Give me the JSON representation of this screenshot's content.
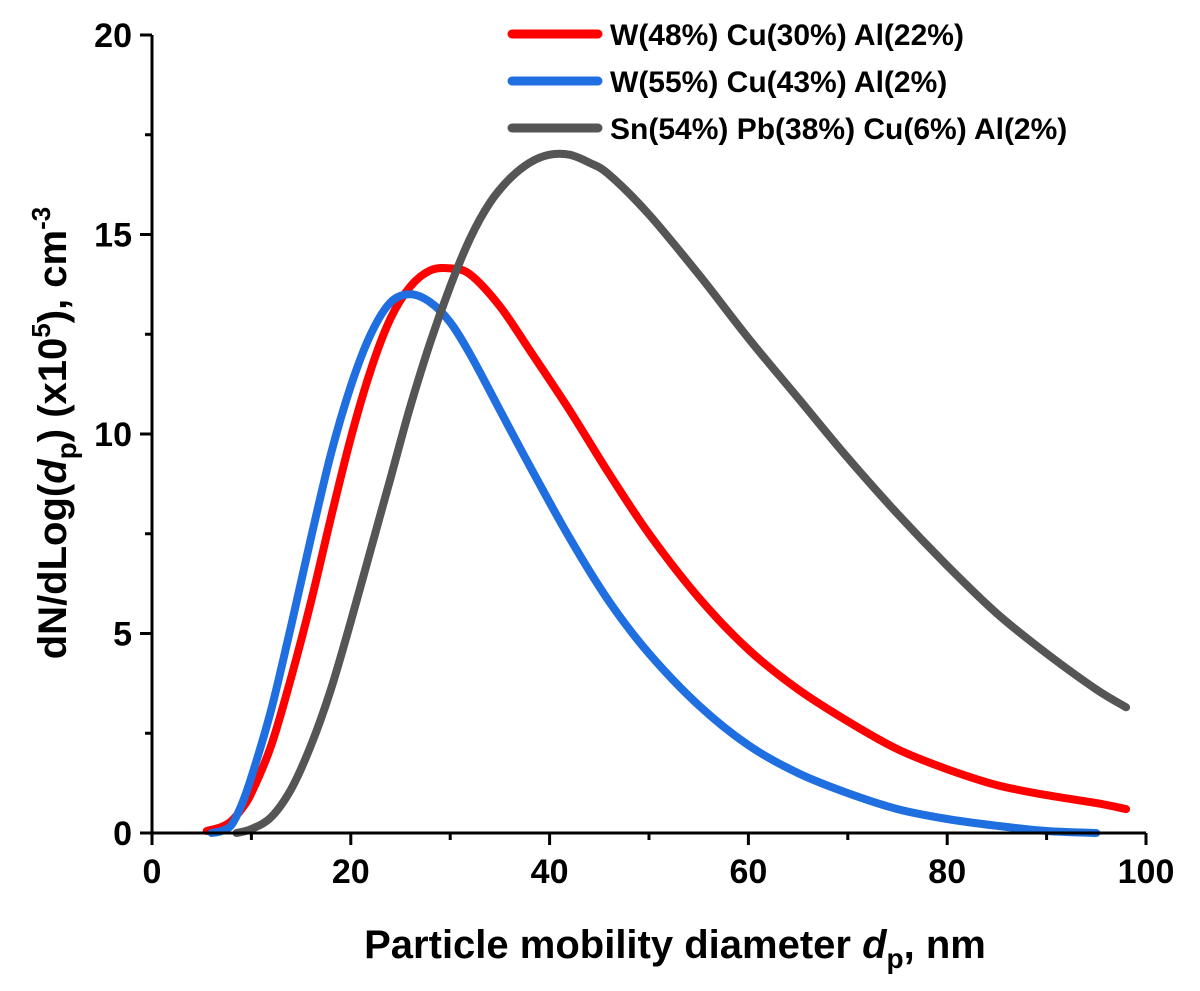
{
  "chart_data": {
    "type": "line",
    "xlabel": {
      "main": "Particle mobility diameter",
      "var": "d",
      "sub": "p",
      "unit": ", nm"
    },
    "ylabel": {
      "p1": "dN/dLog(",
      "var": "d",
      "sub": "p",
      "p2": ") (x10",
      "sup": "5",
      "p3": "), cm",
      "sup2": "-3"
    },
    "xlim": [
      0,
      100
    ],
    "ylim": [
      0,
      20
    ],
    "xticks": [
      0,
      20,
      40,
      60,
      80,
      100
    ],
    "yticks": [
      0,
      5,
      10,
      15,
      20
    ],
    "grid": false,
    "legend_position": "top-right",
    "series": [
      {
        "name": "W(48%) Cu(30%) Al(22%)",
        "color": "#ff0000",
        "x": [
          5.5,
          7,
          8,
          9,
          10,
          12,
          14,
          16,
          18,
          20,
          22,
          24,
          26,
          28,
          30,
          32,
          35,
          38,
          42,
          46,
          50,
          55,
          60,
          65,
          70,
          75,
          80,
          85,
          90,
          95,
          98
        ],
        "y": [
          0.05,
          0.15,
          0.3,
          0.6,
          1.0,
          2.2,
          3.9,
          5.8,
          7.9,
          9.9,
          11.6,
          12.9,
          13.7,
          14.1,
          14.15,
          14.0,
          13.2,
          12.1,
          10.6,
          9.0,
          7.5,
          5.9,
          4.6,
          3.6,
          2.8,
          2.1,
          1.6,
          1.2,
          0.95,
          0.75,
          0.6
        ]
      },
      {
        "name": "W(55%) Cu(43%) Al(2%)",
        "color": "#1f6fe0",
        "x": [
          6,
          7,
          8,
          9,
          10,
          12,
          14,
          16,
          18,
          20,
          22,
          24,
          26,
          28,
          30,
          32,
          35,
          38,
          42,
          46,
          50,
          55,
          60,
          65,
          70,
          75,
          80,
          85,
          90,
          95
        ],
        "y": [
          0.0,
          0.05,
          0.2,
          0.7,
          1.4,
          3.1,
          5.2,
          7.4,
          9.5,
          11.2,
          12.5,
          13.3,
          13.5,
          13.3,
          12.8,
          12.0,
          10.6,
          9.2,
          7.4,
          5.8,
          4.5,
          3.2,
          2.2,
          1.5,
          1.0,
          0.6,
          0.35,
          0.18,
          0.05,
          0.0
        ]
      },
      {
        "name": "Sn(54%) Pb(38%) Cu(6%) Al(2%)",
        "color": "#555555",
        "x": [
          8.5,
          10,
          12,
          14,
          16,
          18,
          20,
          22,
          24,
          26,
          28,
          30,
          32,
          34,
          36,
          38,
          40,
          42,
          44,
          46,
          50,
          55,
          60,
          65,
          70,
          75,
          80,
          85,
          90,
          95,
          98
        ],
        "y": [
          0.0,
          0.1,
          0.4,
          1.1,
          2.2,
          3.6,
          5.3,
          7.1,
          8.9,
          10.7,
          12.3,
          13.7,
          14.9,
          15.8,
          16.4,
          16.8,
          17.0,
          17.0,
          16.8,
          16.5,
          15.5,
          14.0,
          12.4,
          10.9,
          9.4,
          8.0,
          6.7,
          5.5,
          4.5,
          3.6,
          3.15
        ]
      }
    ]
  }
}
